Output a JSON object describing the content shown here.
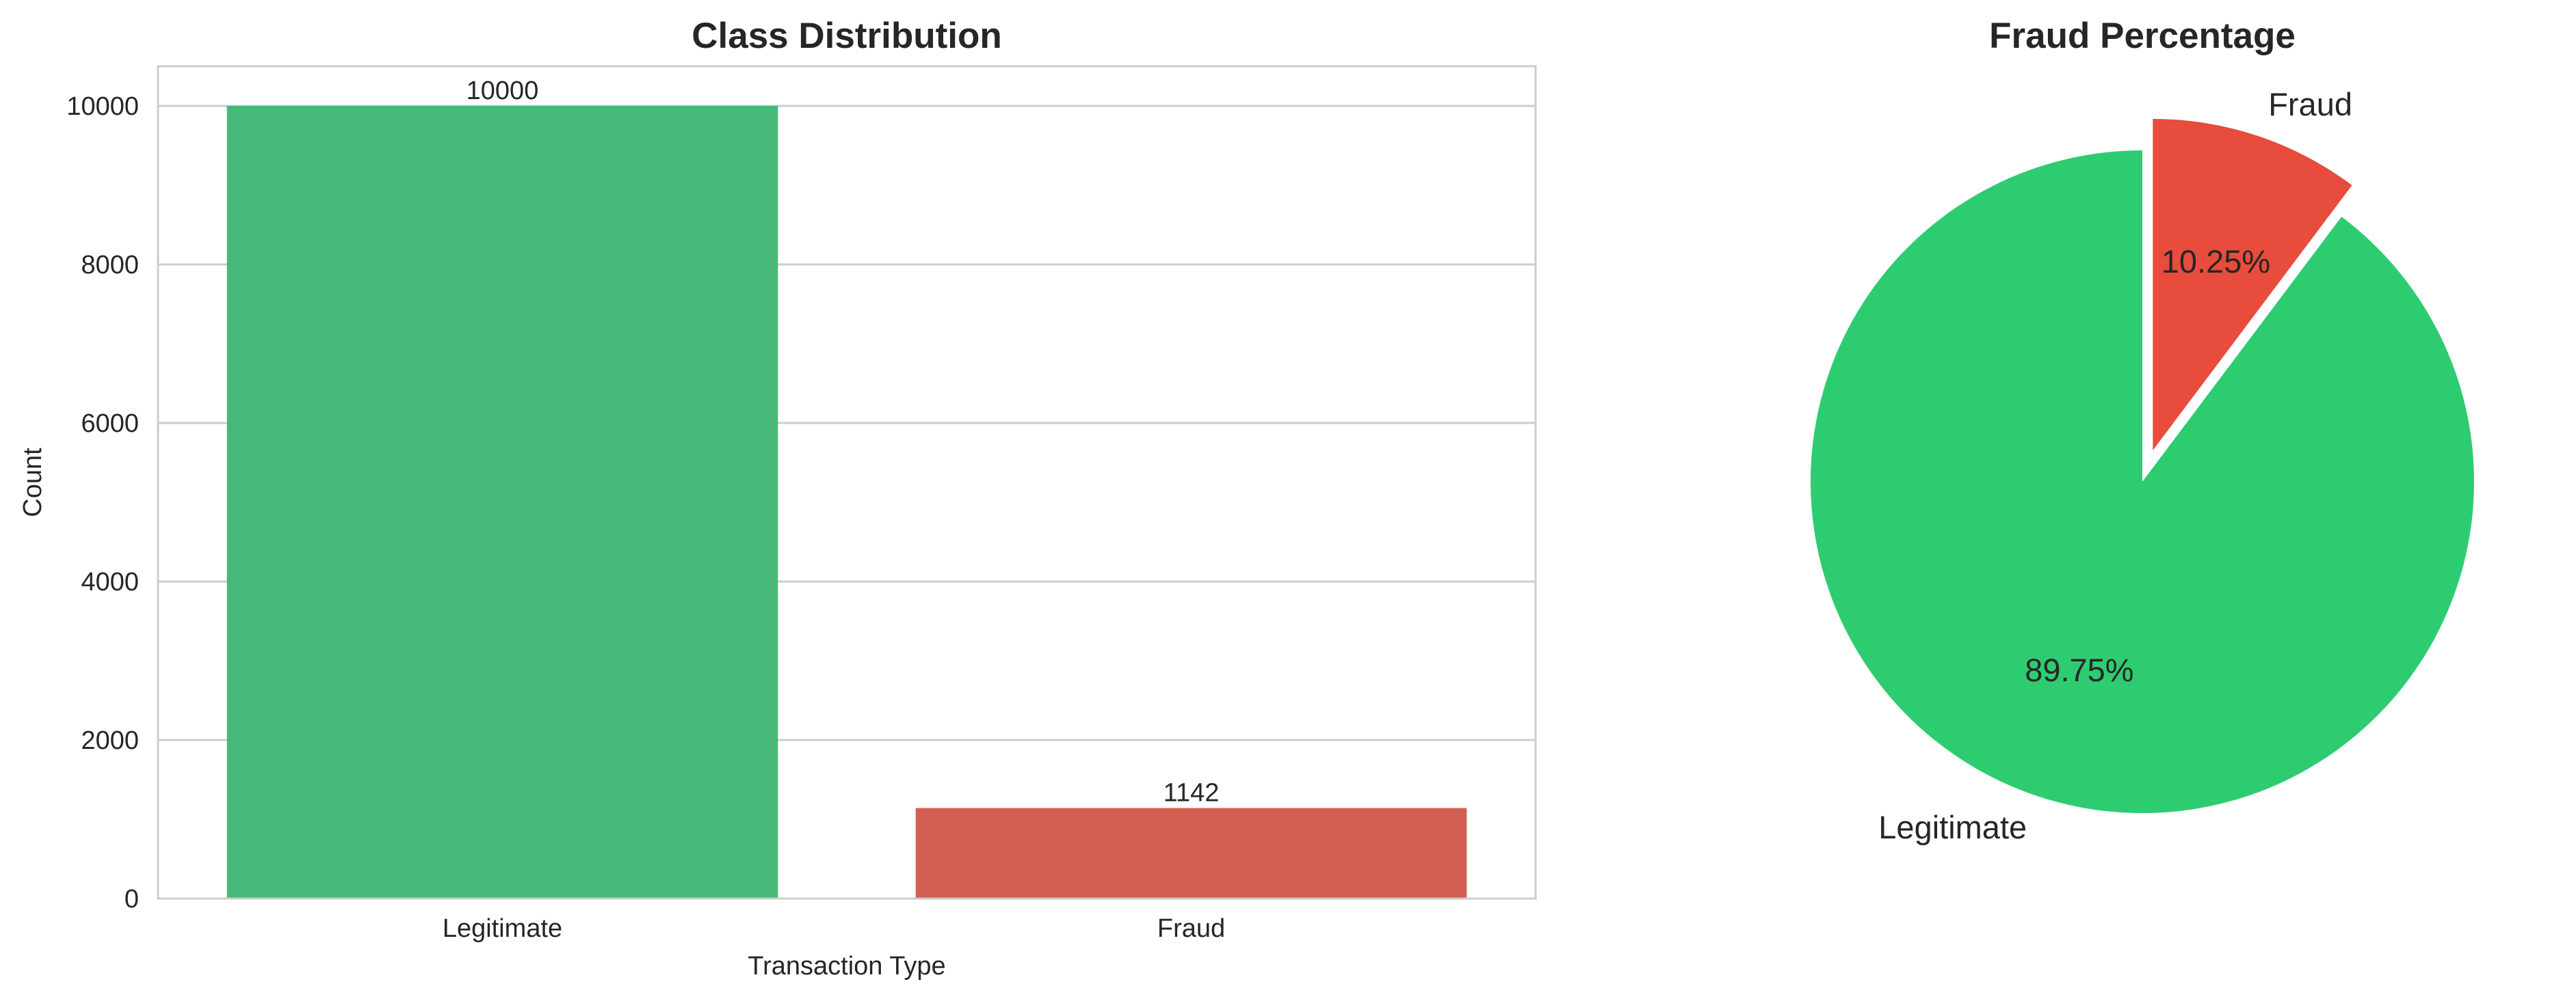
{
  "chart_data": [
    {
      "type": "bar",
      "title": "Class Distribution",
      "xlabel": "Transaction Type",
      "ylabel": "Count",
      "categories": [
        "Legitimate",
        "Fraud"
      ],
      "values": [
        10000,
        1142
      ],
      "value_labels": [
        "10000",
        "1142"
      ],
      "colors": [
        "#46b978",
        "#d35f52"
      ],
      "ylim": [
        0,
        10500
      ],
      "yticks": [
        0,
        2000,
        4000,
        6000,
        8000,
        10000
      ],
      "ytick_labels": [
        "0",
        "2000",
        "4000",
        "6000",
        "8000",
        "10000"
      ],
      "grid": true
    },
    {
      "type": "pie",
      "title": "Fraud Percentage",
      "labels": [
        "Fraud",
        "Legitimate"
      ],
      "values": [
        10.25,
        89.75
      ],
      "pct_labels": [
        "10.25%",
        "89.75%"
      ],
      "colors": [
        "#e74c3c",
        "#2ecc71"
      ],
      "exploded": [
        "Fraud"
      ]
    }
  ]
}
